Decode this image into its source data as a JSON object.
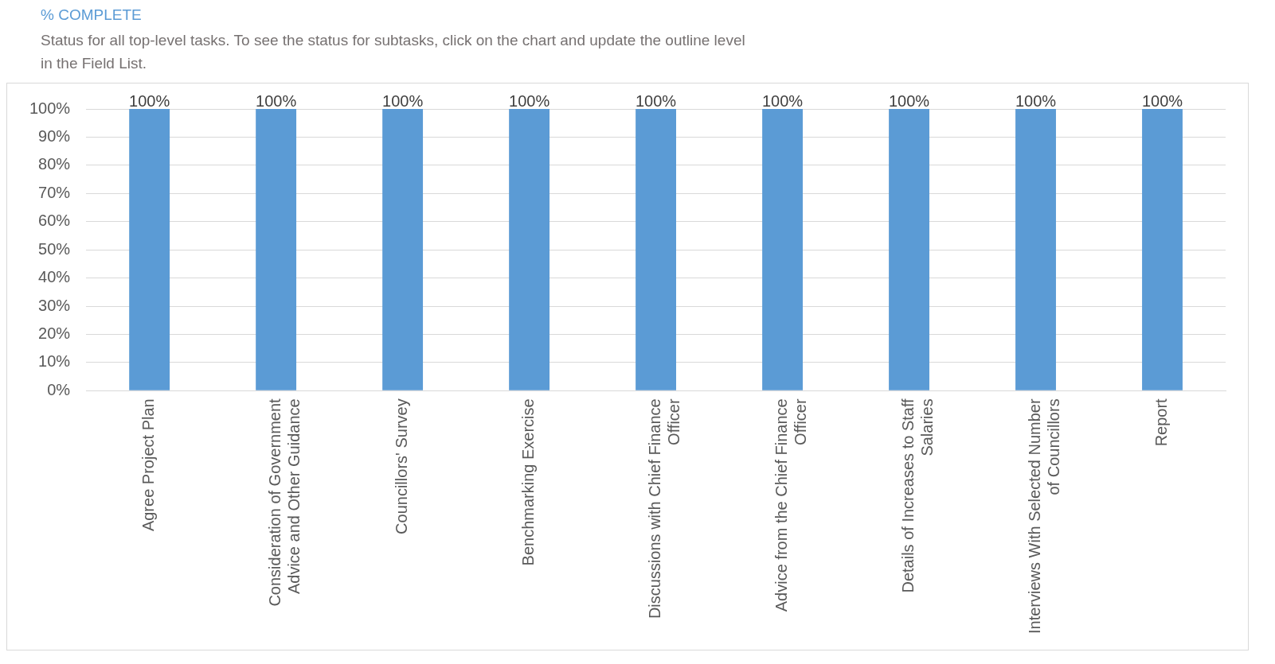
{
  "chart_data": {
    "type": "bar",
    "title": "% COMPLETE",
    "subtitle": "Status for all top-level tasks. To see the status for subtasks, click on the chart and update the outline level in the Field List.",
    "categories": [
      "Agree Project Plan",
      "Consideration of Government Advice and Other Guidance",
      "Councillors' Survey",
      "Benchmarking Exercise",
      "Discussions with Chief Finance Officer",
      "Advice from the Chief Finance Officer",
      "Details of Increases to Staff Salaries",
      "Interviews With Selected Number of Councillors",
      "Report"
    ],
    "values": [
      100,
      100,
      100,
      100,
      100,
      100,
      100,
      100,
      100
    ],
    "value_labels": [
      "100%",
      "100%",
      "100%",
      "100%",
      "100%",
      "100%",
      "100%",
      "100%",
      "100%"
    ],
    "color": "#5b9bd5",
    "ylim": [
      0,
      100
    ],
    "yticks": [
      {
        "value": 0,
        "label": "0%"
      },
      {
        "value": 10,
        "label": "10%"
      },
      {
        "value": 20,
        "label": "20%"
      },
      {
        "value": 30,
        "label": "30%"
      },
      {
        "value": 40,
        "label": "40%"
      },
      {
        "value": 50,
        "label": "50%"
      },
      {
        "value": 60,
        "label": "60%"
      },
      {
        "value": 70,
        "label": "70%"
      },
      {
        "value": 80,
        "label": "80%"
      },
      {
        "value": 90,
        "label": "90%"
      },
      {
        "value": 100,
        "label": "100%"
      }
    ],
    "grid": "y",
    "legend": false
  }
}
